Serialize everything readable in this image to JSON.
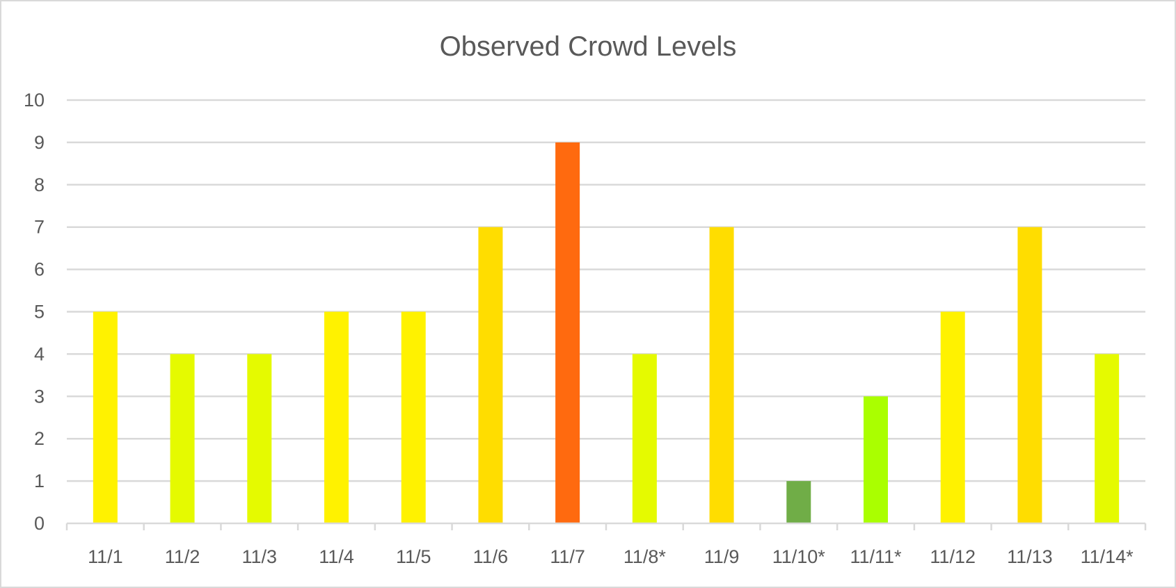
{
  "chart_data": {
    "type": "bar",
    "title": "Observed Crowd Levels",
    "xlabel": "",
    "ylabel": "",
    "ylim": [
      0,
      10
    ],
    "yticks": [
      "0",
      "1",
      "2",
      "3",
      "4",
      "5",
      "6",
      "7",
      "8",
      "9",
      "10"
    ],
    "grid": true,
    "legend": "none",
    "categories": [
      "11/1",
      "11/2",
      "11/3",
      "11/4",
      "11/5",
      "11/6",
      "11/7",
      "11/8*",
      "11/9",
      "11/10*",
      "11/11*",
      "11/12",
      "11/13",
      "11/14*"
    ],
    "values": [
      5,
      4,
      4,
      5,
      5,
      7,
      9,
      4,
      7,
      1,
      3,
      5,
      7,
      4
    ],
    "colors": [
      "#FFF200",
      "#E5FA00",
      "#E5FA00",
      "#FFF200",
      "#FFF200",
      "#FFDD00",
      "#FF6A0F",
      "#E5FA00",
      "#FFDD00",
      "#70AD47",
      "#AAFF00",
      "#FFF200",
      "#FFDD00",
      "#E5FA00"
    ]
  }
}
